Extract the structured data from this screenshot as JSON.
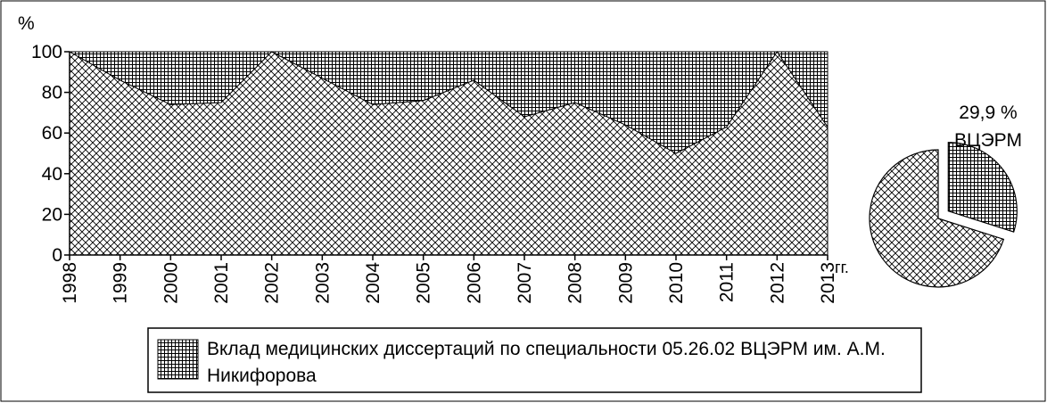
{
  "chart_data": [
    {
      "type": "area",
      "y_label": "%",
      "x_unit": "гг.",
      "x": [
        1998,
        1999,
        2000,
        2001,
        2002,
        2003,
        2004,
        2005,
        2006,
        2007,
        2008,
        2009,
        2010,
        2011,
        2012,
        2013
      ],
      "xlim": [
        1998,
        2013
      ],
      "xticks": [
        1998,
        1999,
        2000,
        2001,
        2002,
        2003,
        2004,
        2005,
        2006,
        2007,
        2008,
        2009,
        2010,
        2011,
        2012,
        2013
      ],
      "ylim": [
        0,
        100
      ],
      "yticks": [
        0,
        20,
        40,
        60,
        80,
        100
      ],
      "stacked": true,
      "series": [
        {
          "pattern": "crosshatch",
          "color": "#000000",
          "values": [
            100,
            86,
            74,
            75,
            100,
            87,
            74,
            76,
            86,
            68,
            75,
            64,
            50,
            63,
            100,
            63
          ]
        },
        {
          "name": "Вклад медицинских диссертаций по специальности 05.26.02 ВЦЭРМ им. А.М. Никифорова",
          "pattern": "grid",
          "color": "#000000",
          "values": [
            0,
            14,
            26,
            25,
            0,
            13,
            26,
            24,
            14,
            32,
            25,
            36,
            50,
            37,
            0,
            37
          ]
        }
      ]
    },
    {
      "type": "pie",
      "categories": [
        "ВЦЭРМ",
        null
      ],
      "values": [
        29.9,
        70.1
      ],
      "value_labels": [
        "29,9 %",
        null
      ],
      "patterns": [
        "grid",
        "crosshatch"
      ],
      "explode": [
        true,
        false
      ]
    }
  ]
}
